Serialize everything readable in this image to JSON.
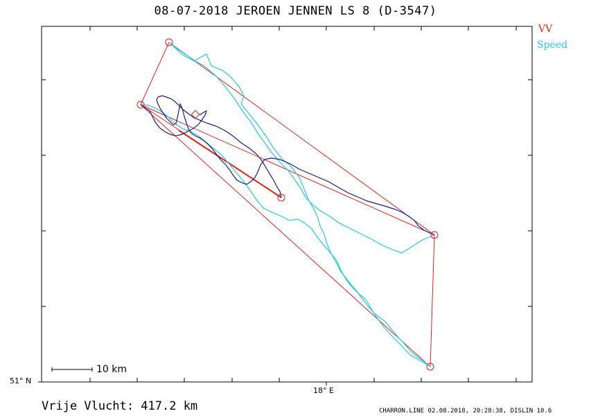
{
  "title": "08-07-2018   JEROEN JENNEN   LS 8 (D-3547)",
  "legend": {
    "items": [
      {
        "label": "VV",
        "color": "#e8201a"
      },
      {
        "label": "Speed",
        "color": "#22ccdd"
      }
    ]
  },
  "axes": {
    "latitude_label": "51° N",
    "longitude_label": "18° E"
  },
  "scale_bar": {
    "label": "10 km"
  },
  "distance_text": "Vrije Vlucht:  417.2 km",
  "footer": "CHARRON.LINE 02.08.2018, 20:28:38, DISLIN 10.6",
  "colors": {
    "vv_route": "#e8201a",
    "speed_route": "#22ccdd",
    "flight_track": "#1a1a8a",
    "frame": "#000000"
  }
}
